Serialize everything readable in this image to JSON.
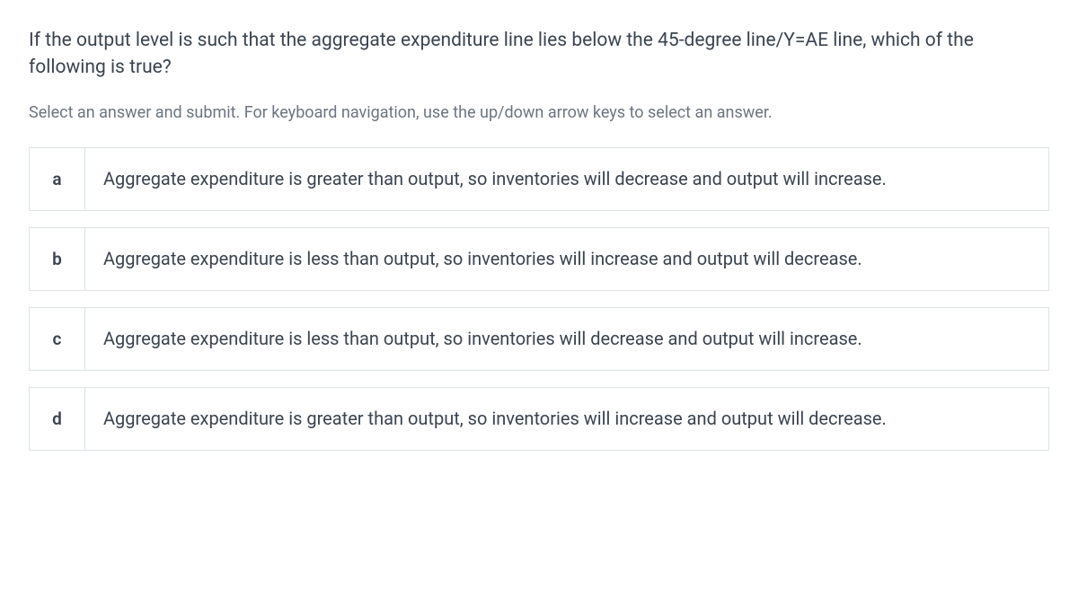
{
  "question": {
    "text": "If the output level is such that the aggregate expenditure line lies below the 45-degree line/Y=AE line, which of the following is true?",
    "instruction": "Select an answer and submit. For keyboard navigation, use the up/down arrow keys to select an answer."
  },
  "options": [
    {
      "letter": "a",
      "text": "Aggregate expenditure is greater than output, so inventories will decrease and output will increase."
    },
    {
      "letter": "b",
      "text": "Aggregate expenditure is less than output, so inventories will increase and output will decrease."
    },
    {
      "letter": "c",
      "text": "Aggregate expenditure is less than output, so inventories will decrease and output will increase."
    },
    {
      "letter": "d",
      "text": "Aggregate expenditure is greater than output, so inventories will increase and output will decrease."
    }
  ],
  "styling": {
    "background_color": "#ffffff",
    "border_color": "#dde2e6",
    "question_color": "#3a4450",
    "instruction_color": "#6b7580",
    "option_text_color": "#3a4450",
    "question_fontsize": 21,
    "instruction_fontsize": 18,
    "option_fontsize": 20,
    "letter_fontsize": 19
  }
}
